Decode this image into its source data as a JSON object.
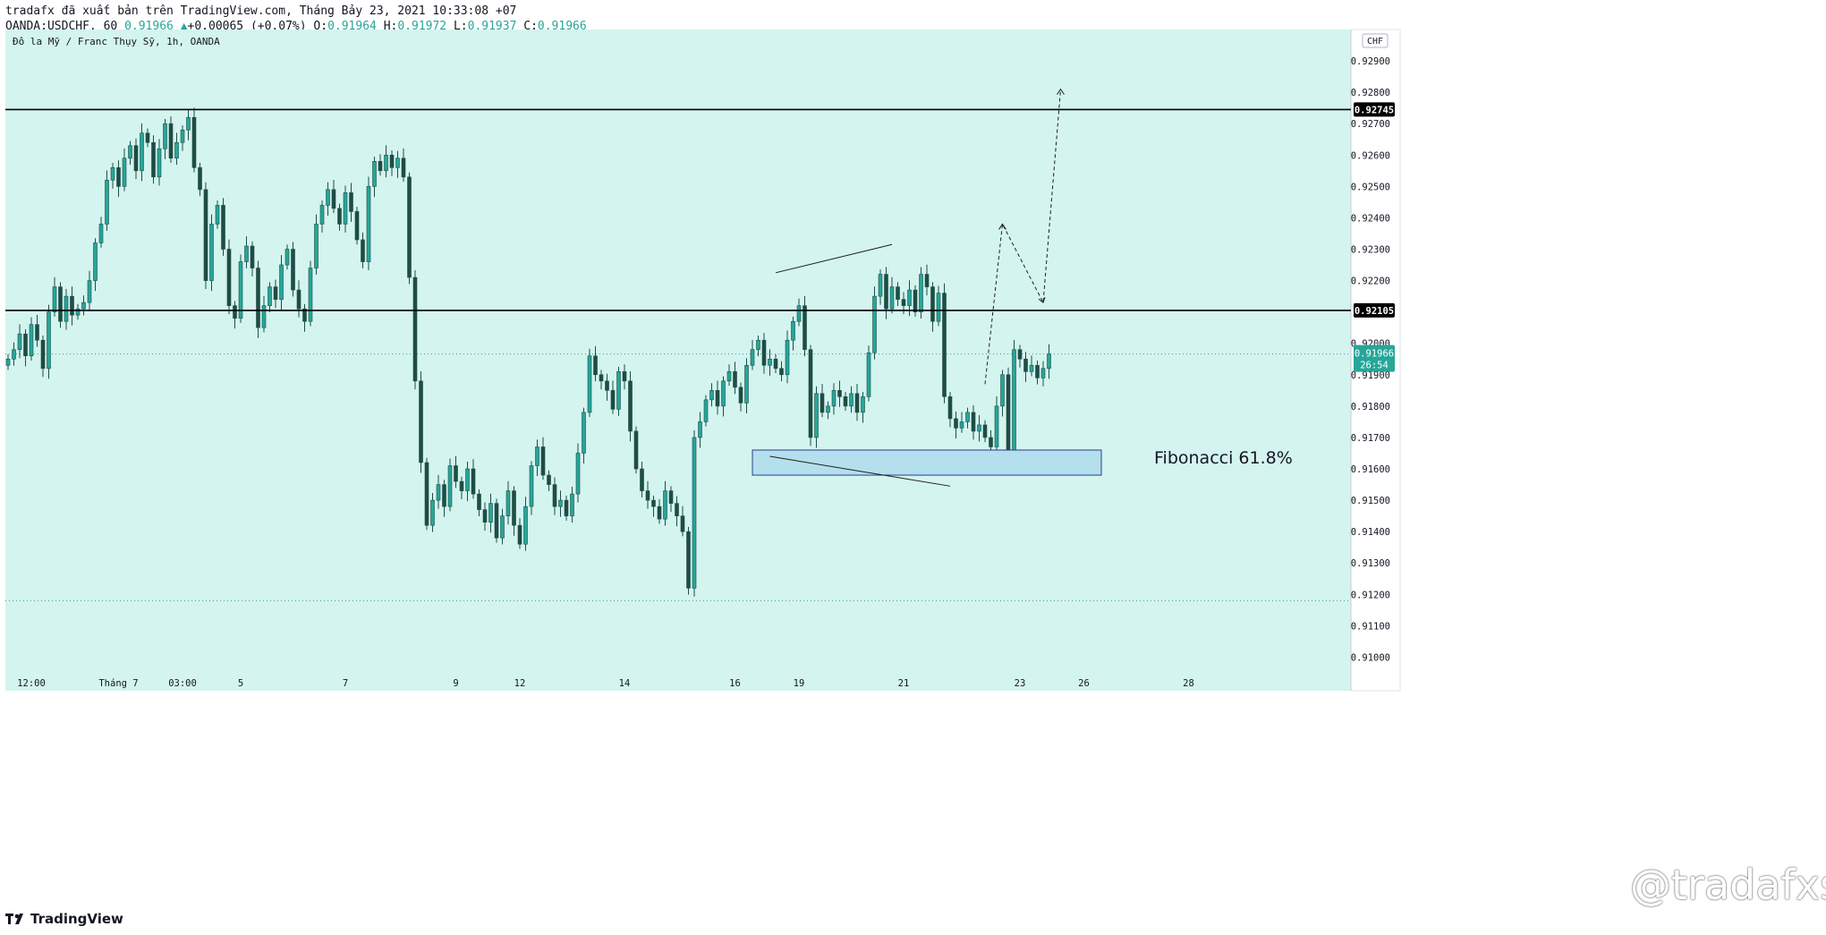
{
  "header": {
    "line1": "tradafx đã xuất bản trên TradingView.com, Tháng Bảy 23, 2021 10:33:08 +07",
    "symbol": "OANDA:USDCHF, 60",
    "last": "0.91966",
    "change": "+0.00065 (+0.07%)",
    "o_label": "O:",
    "o": "0.91964",
    "h_label": "H:",
    "h": "0.91972",
    "l_label": "L:",
    "l": "0.91937",
    "c_label": "C:",
    "c": "0.91966"
  },
  "footer": {
    "brand": "TradingView",
    "watermark": "@tradafxsp"
  },
  "colors": {
    "bg": "#d4f4ef",
    "up": "#26a69a",
    "down": "#1e4d45",
    "wick": "#1e4d45",
    "box_fill": "#b4dfec",
    "box_stroke": "#2a3b8f",
    "price_tag": "#26a69a"
  },
  "chart_data": {
    "type": "candlestick",
    "title": "Đô la Mỹ / Franc Thụy Sỹ, 1h, OANDA",
    "currency": "CHF",
    "ylim": [
      0.9095,
      0.93
    ],
    "y_ticks": [
      "0.92900",
      "0.92800",
      "0.92700",
      "0.92600",
      "0.92500",
      "0.92400",
      "0.92300",
      "0.92200",
      "0.92000",
      "0.91900",
      "0.91800",
      "0.91700",
      "0.91600",
      "0.91500",
      "0.91400",
      "0.91300",
      "0.91200",
      "0.91100",
      "0.91000"
    ],
    "x_ticks": [
      {
        "label": "12:00",
        "i": 4
      },
      {
        "label": "Tháng 7",
        "i": 19
      },
      {
        "label": "03:00",
        "i": 30
      },
      {
        "label": "5",
        "i": 40
      },
      {
        "label": "7",
        "i": 58
      },
      {
        "label": "9",
        "i": 77
      },
      {
        "label": "12",
        "i": 88
      },
      {
        "label": "14",
        "i": 106
      },
      {
        "label": "16",
        "i": 125
      },
      {
        "label": "19",
        "i": 136
      },
      {
        "label": "21",
        "i": 154
      },
      {
        "label": "23",
        "i": 174
      },
      {
        "label": "26",
        "i": 185
      },
      {
        "label": "28",
        "i": 203
      }
    ],
    "levels": [
      {
        "price": "0.92745",
        "style": "solid"
      },
      {
        "price": "0.92105",
        "style": "solid"
      }
    ],
    "current": {
      "price": "0.91966",
      "countdown": "26:54"
    },
    "low_line": 0.9118,
    "annotation": "Fibonacci 61.8%",
    "zone": {
      "from": 0.9158,
      "to": 0.9166
    },
    "projection": [
      0.9187,
      0.9238,
      0.9213,
      0.9281
    ],
    "closes": [
      0.9195,
      0.9198,
      0.9203,
      0.9196,
      0.9206,
      0.9201,
      0.9192,
      0.921,
      0.9218,
      0.9207,
      0.9215,
      0.9209,
      0.9211,
      0.9213,
      0.922,
      0.9232,
      0.9238,
      0.9252,
      0.9256,
      0.925,
      0.9259,
      0.9263,
      0.9255,
      0.9267,
      0.9264,
      0.9253,
      0.9262,
      0.927,
      0.9259,
      0.9264,
      0.9268,
      0.9272,
      0.9256,
      0.9249,
      0.922,
      0.9238,
      0.9244,
      0.923,
      0.9212,
      0.9208,
      0.9226,
      0.9231,
      0.9224,
      0.9205,
      0.9212,
      0.9218,
      0.9214,
      0.9225,
      0.923,
      0.9217,
      0.9211,
      0.9207,
      0.9224,
      0.9238,
      0.9244,
      0.9249,
      0.9243,
      0.9238,
      0.9248,
      0.9242,
      0.9233,
      0.9226,
      0.925,
      0.9258,
      0.9255,
      0.926,
      0.9256,
      0.9259,
      0.9253,
      0.9221,
      0.9188,
      0.9162,
      0.9142,
      0.915,
      0.9155,
      0.9148,
      0.9161,
      0.9156,
      0.9153,
      0.916,
      0.9152,
      0.9147,
      0.9143,
      0.9149,
      0.9138,
      0.9145,
      0.9153,
      0.9142,
      0.9136,
      0.9148,
      0.9161,
      0.9167,
      0.9158,
      0.9155,
      0.9148,
      0.915,
      0.9145,
      0.9152,
      0.9165,
      0.9178,
      0.9196,
      0.919,
      0.9188,
      0.9185,
      0.9179,
      0.9191,
      0.9188,
      0.9172,
      0.916,
      0.9153,
      0.915,
      0.9148,
      0.9144,
      0.9153,
      0.9149,
      0.9145,
      0.914,
      0.9122,
      0.917,
      0.9175,
      0.9182,
      0.9185,
      0.918,
      0.9188,
      0.9191,
      0.9186,
      0.9181,
      0.9193,
      0.9198,
      0.9201,
      0.9193,
      0.9195,
      0.9192,
      0.919,
      0.9201,
      0.9207,
      0.9212,
      0.9198,
      0.917,
      0.9184,
      0.9178,
      0.918,
      0.9185,
      0.9183,
      0.918,
      0.9184,
      0.9178,
      0.9183,
      0.9197,
      0.9215,
      0.9222,
      0.9211,
      0.9218,
      0.9214,
      0.9212,
      0.9217,
      0.921,
      0.9222,
      0.9218,
      0.9207,
      0.9216,
      0.9183,
      0.9176,
      0.9173,
      0.9175,
      0.9178,
      0.9172,
      0.9174,
      0.917,
      0.9167,
      0.918,
      0.919,
      0.916,
      0.9198,
      0.9195,
      0.9191,
      0.9193,
      0.9189,
      0.9192,
      0.91966
    ]
  }
}
